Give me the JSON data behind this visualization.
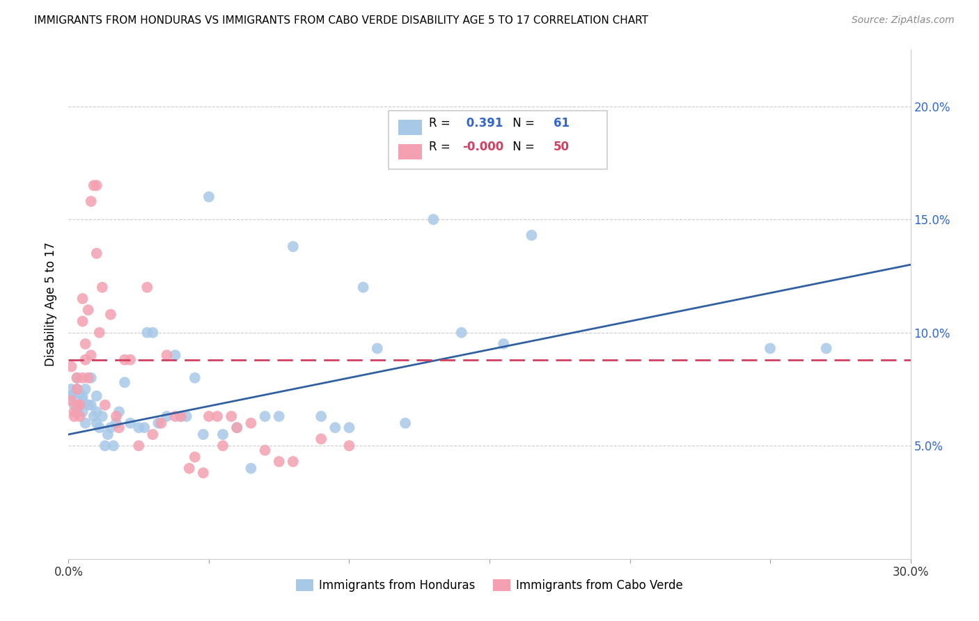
{
  "title": "IMMIGRANTS FROM HONDURAS VS IMMIGRANTS FROM CABO VERDE DISABILITY AGE 5 TO 17 CORRELATION CHART",
  "source": "Source: ZipAtlas.com",
  "ylabel": "Disability Age 5 to 17",
  "legend_label1": "Immigrants from Honduras",
  "legend_label2": "Immigrants from Cabo Verde",
  "r1": "0.391",
  "n1": "61",
  "r2": "-0.000",
  "n2": "50",
  "xlim": [
    0.0,
    0.3
  ],
  "ylim": [
    0.0,
    0.225
  ],
  "yticks": [
    0.05,
    0.1,
    0.15,
    0.2
  ],
  "ytick_labels": [
    "5.0%",
    "10.0%",
    "15.0%",
    "20.0%"
  ],
  "xticks": [
    0.0,
    0.05,
    0.1,
    0.15,
    0.2,
    0.25,
    0.3
  ],
  "xtick_labels": [
    "0.0%",
    "",
    "",
    "",
    "",
    "",
    "30.0%"
  ],
  "color_blue": "#a8c8e8",
  "color_pink": "#f4a0b0",
  "line_blue": "#3060a0",
  "line_pink": "#d04060",
  "blue_line_y0": 0.055,
  "blue_line_y1": 0.13,
  "pink_line_y": 0.088,
  "blue_x": [
    0.001,
    0.001,
    0.002,
    0.002,
    0.003,
    0.003,
    0.003,
    0.004,
    0.004,
    0.005,
    0.005,
    0.005,
    0.006,
    0.006,
    0.007,
    0.008,
    0.008,
    0.009,
    0.01,
    0.01,
    0.01,
    0.011,
    0.012,
    0.013,
    0.014,
    0.015,
    0.016,
    0.017,
    0.018,
    0.02,
    0.022,
    0.025,
    0.027,
    0.028,
    0.03,
    0.032,
    0.035,
    0.038,
    0.04,
    0.042,
    0.045,
    0.048,
    0.05,
    0.055,
    0.06,
    0.065,
    0.07,
    0.075,
    0.08,
    0.09,
    0.095,
    0.1,
    0.105,
    0.11,
    0.12,
    0.13,
    0.14,
    0.155,
    0.165,
    0.25,
    0.27
  ],
  "blue_y": [
    0.072,
    0.075,
    0.068,
    0.073,
    0.065,
    0.075,
    0.08,
    0.068,
    0.073,
    0.065,
    0.07,
    0.072,
    0.06,
    0.075,
    0.068,
    0.08,
    0.068,
    0.063,
    0.06,
    0.065,
    0.072,
    0.058,
    0.063,
    0.05,
    0.055,
    0.058,
    0.05,
    0.06,
    0.065,
    0.078,
    0.06,
    0.058,
    0.058,
    0.1,
    0.1,
    0.06,
    0.063,
    0.09,
    0.063,
    0.063,
    0.08,
    0.055,
    0.16,
    0.055,
    0.058,
    0.04,
    0.063,
    0.063,
    0.138,
    0.063,
    0.058,
    0.058,
    0.12,
    0.093,
    0.06,
    0.15,
    0.1,
    0.095,
    0.143,
    0.093,
    0.093
  ],
  "pink_x": [
    0.001,
    0.001,
    0.002,
    0.002,
    0.003,
    0.003,
    0.003,
    0.004,
    0.004,
    0.005,
    0.005,
    0.005,
    0.006,
    0.006,
    0.007,
    0.007,
    0.008,
    0.008,
    0.009,
    0.01,
    0.01,
    0.011,
    0.012,
    0.013,
    0.015,
    0.017,
    0.018,
    0.02,
    0.022,
    0.025,
    0.028,
    0.03,
    0.033,
    0.035,
    0.038,
    0.04,
    0.043,
    0.045,
    0.048,
    0.05,
    0.053,
    0.055,
    0.058,
    0.06,
    0.065,
    0.07,
    0.075,
    0.08,
    0.09,
    0.1
  ],
  "pink_y": [
    0.085,
    0.07,
    0.065,
    0.063,
    0.068,
    0.075,
    0.08,
    0.068,
    0.063,
    0.08,
    0.105,
    0.115,
    0.095,
    0.088,
    0.11,
    0.08,
    0.09,
    0.158,
    0.165,
    0.165,
    0.135,
    0.1,
    0.12,
    0.068,
    0.108,
    0.063,
    0.058,
    0.088,
    0.088,
    0.05,
    0.12,
    0.055,
    0.06,
    0.09,
    0.063,
    0.063,
    0.04,
    0.045,
    0.038,
    0.063,
    0.063,
    0.05,
    0.063,
    0.058,
    0.06,
    0.048,
    0.043,
    0.043,
    0.053,
    0.05
  ]
}
